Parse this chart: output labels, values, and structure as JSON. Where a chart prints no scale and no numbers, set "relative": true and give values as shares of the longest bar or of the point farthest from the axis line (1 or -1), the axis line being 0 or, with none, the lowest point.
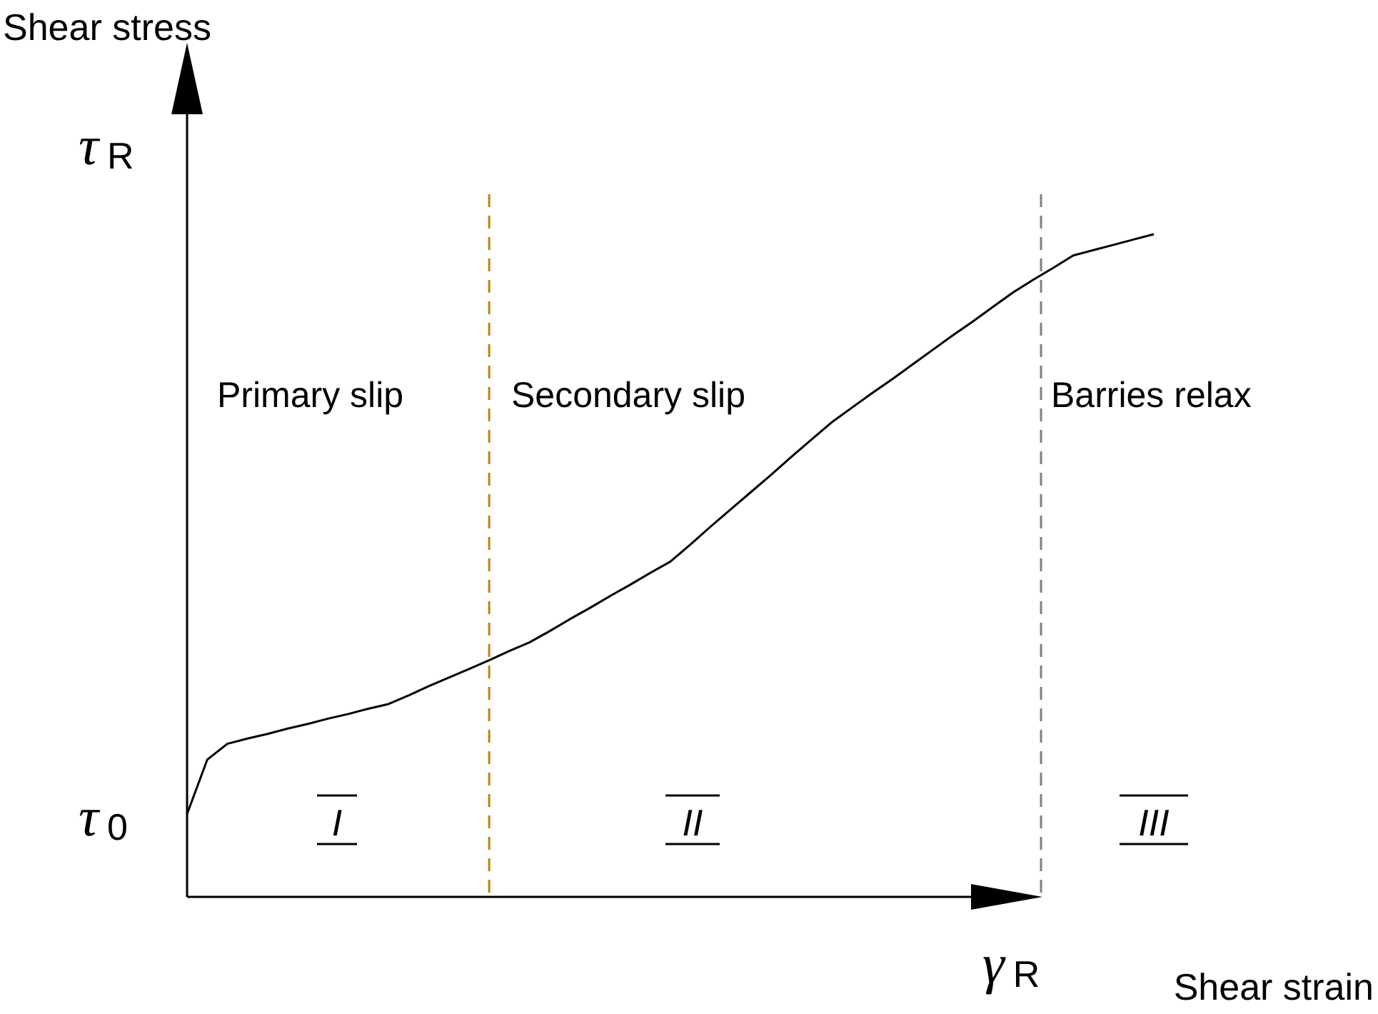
{
  "chart_data": {
    "type": "line",
    "relative": true,
    "xlabel": "Shear strain",
    "ylabel": "Shear stress",
    "line_style": "solid",
    "categories": [
      null,
      null,
      null,
      null,
      null,
      null,
      null,
      null,
      null,
      null,
      null,
      null,
      null,
      null,
      null,
      null,
      null,
      null,
      null,
      null,
      null,
      null,
      null,
      null,
      null,
      null,
      null,
      null,
      null,
      null,
      null,
      null,
      null,
      null,
      null,
      null,
      null,
      null,
      null,
      null,
      null,
      null,
      null,
      null,
      null,
      null,
      null,
      null,
      null
    ],
    "series": [
      {
        "color": "#000000",
        "values": [
          0.125,
          0.207,
          0.231,
          0.239,
          0.246,
          0.254,
          0.261,
          0.269,
          0.276,
          0.284,
          0.291,
          0.304,
          0.318,
          0.331,
          0.344,
          0.357,
          0.371,
          0.384,
          0.401,
          0.419,
          0.436,
          0.454,
          0.471,
          0.489,
          0.506,
          0.532,
          0.559,
          0.585,
          0.611,
          0.637,
          0.664,
          0.69,
          0.716,
          0.738,
          0.76,
          0.781,
          0.803,
          0.825,
          0.847,
          0.868,
          0.89,
          0.912,
          0.931,
          0.949,
          0.968,
          0.976,
          0.984,
          0.992,
          1
        ]
      }
    ],
    "annotations": [
      "τ$_{R}$",
      "τ$_{0}$",
      "γ$_{R}$",
      "Primary slip",
      "Secondary slip",
      "Barries relax",
      "I",
      "II",
      "III"
    ]
  }
}
